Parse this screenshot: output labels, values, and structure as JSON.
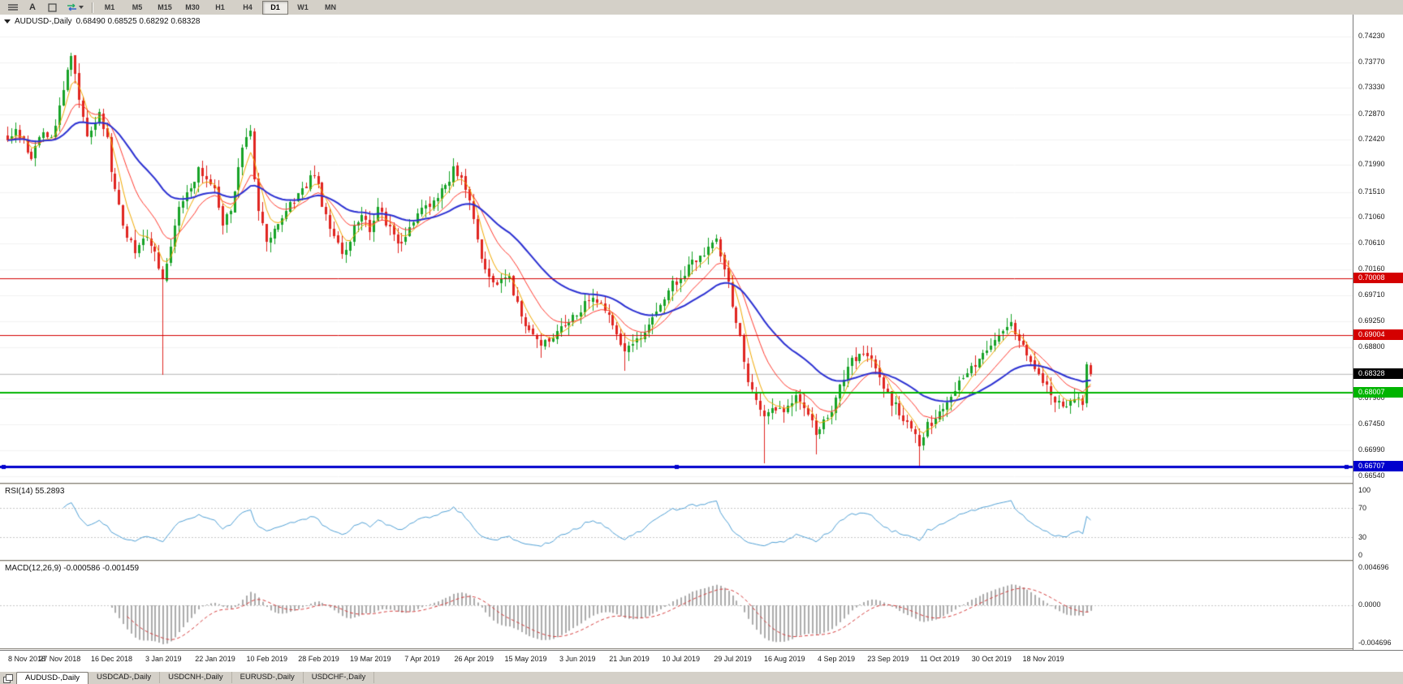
{
  "toolbar": {
    "icons": [
      {
        "name": "menu-icon",
        "glyph": "≡"
      },
      {
        "name": "text-a-icon",
        "glyph": "A"
      },
      {
        "name": "frame-icon",
        "glyph": ""
      },
      {
        "name": "cycle-icon",
        "glyph": "⇄"
      }
    ],
    "timeframes": [
      "M1",
      "M5",
      "M15",
      "M30",
      "H1",
      "H4",
      "D1",
      "W1",
      "MN"
    ],
    "active_timeframe": "D1"
  },
  "chart": {
    "title": "AUDUSD-,Daily",
    "ohlc_text": "0.68490 0.68525 0.68292 0.68328"
  },
  "chart_data": {
    "type": "candlestick",
    "symbol": "AUDUSD-",
    "timeframe": "Daily",
    "title": "AUDUSD-,Daily",
    "last_ohlc": {
      "open": 0.6849,
      "high": 0.68525,
      "low": 0.68292,
      "close": 0.68328
    },
    "ylim": [
      0.6643,
      0.7461
    ],
    "y_axis_labels": [
      "0.74230",
      "0.73770",
      "0.73330",
      "0.72870",
      "0.72420",
      "0.71990",
      "0.71510",
      "0.71060",
      "0.70610",
      "0.70160",
      "0.69710",
      "0.69250",
      "0.68800",
      "0.68350",
      "0.67900",
      "0.67450",
      "0.66990",
      "0.66540"
    ],
    "x_labels": [
      "8 Nov 2018",
      "27 Nov 2018",
      "16 Dec 2018",
      "3 Jan 2019",
      "22 Jan 2019",
      "10 Feb 2019",
      "28 Feb 2019",
      "19 Mar 2019",
      "7 Apr 2019",
      "26 Apr 2019",
      "15 May 2019",
      "3 Jun 2019",
      "21 Jun 2019",
      "10 Jul 2019",
      "29 Jul 2019",
      "16 Aug 2019",
      "4 Sep 2019",
      "23 Sep 2019",
      "11 Oct 2019",
      "30 Oct 2019",
      "18 Nov 2019"
    ],
    "bars_per_label": 13,
    "bar_count": 273,
    "close_anchors": [
      [
        0,
        0.7243
      ],
      [
        2,
        0.7268
      ],
      [
        4,
        0.7238
      ],
      [
        6,
        0.7214
      ],
      [
        9,
        0.726
      ],
      [
        11,
        0.7246
      ],
      [
        13,
        0.7303
      ],
      [
        15,
        0.7368
      ],
      [
        16,
        0.7388
      ],
      [
        17,
        0.7352
      ],
      [
        18,
        0.7308
      ],
      [
        20,
        0.7255
      ],
      [
        23,
        0.7284
      ],
      [
        25,
        0.724
      ],
      [
        26,
        0.718
      ],
      [
        28,
        0.713
      ],
      [
        29,
        0.7095
      ],
      [
        32,
        0.7042
      ],
      [
        34,
        0.7072
      ],
      [
        36,
        0.7058
      ],
      [
        38,
        0.7022
      ],
      [
        39,
        0.6998
      ],
      [
        41,
        0.7062
      ],
      [
        43,
        0.712
      ],
      [
        46,
        0.7158
      ],
      [
        48,
        0.7188
      ],
      [
        50,
        0.717
      ],
      [
        52,
        0.7154
      ],
      [
        54,
        0.7092
      ],
      [
        56,
        0.712
      ],
      [
        58,
        0.7198
      ],
      [
        59,
        0.7232
      ],
      [
        61,
        0.7252
      ],
      [
        62,
        0.718
      ],
      [
        63,
        0.712
      ],
      [
        65,
        0.7066
      ],
      [
        68,
        0.7094
      ],
      [
        71,
        0.7128
      ],
      [
        74,
        0.7152
      ],
      [
        77,
        0.7184
      ],
      [
        79,
        0.7132
      ],
      [
        81,
        0.7086
      ],
      [
        84,
        0.704
      ],
      [
        87,
        0.7088
      ],
      [
        89,
        0.7118
      ],
      [
        91,
        0.7076
      ],
      [
        93,
        0.7128
      ],
      [
        96,
        0.7086
      ],
      [
        99,
        0.706
      ],
      [
        102,
        0.7104
      ],
      [
        104,
        0.7118
      ],
      [
        107,
        0.7134
      ],
      [
        110,
        0.7162
      ],
      [
        112,
        0.7192
      ],
      [
        114,
        0.7176
      ],
      [
        116,
        0.714
      ],
      [
        118,
        0.7066
      ],
      [
        120,
        0.7016
      ],
      [
        123,
        0.6992
      ],
      [
        126,
        0.7
      ],
      [
        128,
        0.6952
      ],
      [
        131,
        0.6906
      ],
      [
        134,
        0.688
      ],
      [
        137,
        0.6898
      ],
      [
        140,
        0.692
      ],
      [
        143,
        0.6936
      ],
      [
        146,
        0.6966
      ],
      [
        149,
        0.6954
      ],
      [
        152,
        0.6924
      ],
      [
        155,
        0.6874
      ],
      [
        158,
        0.6888
      ],
      [
        161,
        0.6924
      ],
      [
        164,
        0.696
      ],
      [
        167,
        0.699
      ],
      [
        170,
        0.701
      ],
      [
        173,
        0.7034
      ],
      [
        176,
        0.705
      ],
      [
        178,
        0.7066
      ],
      [
        180,
        0.7018
      ],
      [
        182,
        0.6956
      ],
      [
        184,
        0.6898
      ],
      [
        186,
        0.6822
      ],
      [
        188,
        0.6784
      ],
      [
        190,
        0.6754
      ],
      [
        192,
        0.678
      ],
      [
        195,
        0.6768
      ],
      [
        198,
        0.6792
      ],
      [
        201,
        0.6758
      ],
      [
        203,
        0.6732
      ],
      [
        206,
        0.6758
      ],
      [
        208,
        0.679
      ],
      [
        211,
        0.6846
      ],
      [
        214,
        0.6872
      ],
      [
        217,
        0.6862
      ],
      [
        220,
        0.6808
      ],
      [
        222,
        0.6784
      ],
      [
        225,
        0.6758
      ],
      [
        227,
        0.6742
      ],
      [
        229,
        0.6706
      ],
      [
        231,
        0.6742
      ],
      [
        234,
        0.6762
      ],
      [
        237,
        0.6792
      ],
      [
        240,
        0.683
      ],
      [
        243,
        0.6852
      ],
      [
        246,
        0.688
      ],
      [
        249,
        0.6904
      ],
      [
        252,
        0.692
      ],
      [
        254,
        0.6898
      ],
      [
        256,
        0.6862
      ],
      [
        258,
        0.6838
      ],
      [
        260,
        0.6824
      ],
      [
        262,
        0.6794
      ],
      [
        265,
        0.6772
      ],
      [
        267,
        0.6782
      ],
      [
        269,
        0.6788
      ],
      [
        270,
        0.6776
      ],
      [
        271,
        0.6849
      ],
      [
        272,
        0.68328
      ]
    ],
    "wick_lows": [
      [
        39,
        0.6832
      ],
      [
        134,
        0.6862
      ],
      [
        155,
        0.6838
      ],
      [
        190,
        0.6677
      ],
      [
        203,
        0.6692
      ],
      [
        229,
        0.6671
      ]
    ],
    "wick_highs": [
      [
        16,
        0.7394
      ],
      [
        112,
        0.7207
      ],
      [
        252,
        0.6929
      ]
    ],
    "colors": {
      "up": "#17a327",
      "down": "#e02521",
      "ma_fast": "#f2a900",
      "ma_mid": "#ff3b30",
      "ma_slow": "#2b30d2",
      "grid": "#f2f2f2",
      "current_line": "#c2c2c2"
    },
    "moving_averages": [
      {
        "period": 5,
        "color_key": "ma_fast",
        "width": 1
      },
      {
        "period": 13,
        "color_key": "ma_mid",
        "width": 1
      },
      {
        "period": 34,
        "color_key": "ma_slow",
        "width": 2
      }
    ],
    "hlines": [
      {
        "value": 0.70008,
        "label": "0.70008",
        "color": "#d40000",
        "width": 1,
        "selected": false
      },
      {
        "value": 0.69004,
        "label": "0.69004",
        "color": "#d40000",
        "width": 1,
        "selected": false
      },
      {
        "value": 0.68007,
        "label": "0.68007",
        "color": "#00b400",
        "width": 2,
        "selected": false
      },
      {
        "value": 0.66707,
        "label": "0.66707",
        "color": "#0000cd",
        "width": 3,
        "selected": true
      }
    ],
    "current_price": {
      "value": 0.68328,
      "label": "0.68328",
      "badge_color": "#000000"
    },
    "indicators": {
      "rsi": {
        "name": "RSI(14)",
        "value": "55.2893",
        "period": 14,
        "range": [
          0,
          100
        ],
        "levels": [
          70,
          30
        ],
        "axis_labels": [
          {
            "v": 100,
            "t": "100"
          },
          {
            "v": 70,
            "t": "70"
          },
          {
            "v": 30,
            "t": "30"
          },
          {
            "v": 0,
            "t": "0"
          }
        ],
        "color": "#4f9fd4"
      },
      "macd": {
        "name": "MACD(12,26,9)",
        "values": "-0.000586 -0.001459",
        "fast": 12,
        "slow": 26,
        "signal": 9,
        "axis_labels": [
          "0.004696",
          "0.0000",
          "-0.004696"
        ],
        "hist_color": "#ababab",
        "signal_color": "#d43c3c"
      }
    }
  },
  "bottom_tabs": {
    "tabs": [
      "AUDUSD-,Daily",
      "USDCAD-,Daily",
      "USDCNH-,Daily",
      "EURUSD-,Daily",
      "USDCHF-,Daily"
    ],
    "active_index": 0
  }
}
